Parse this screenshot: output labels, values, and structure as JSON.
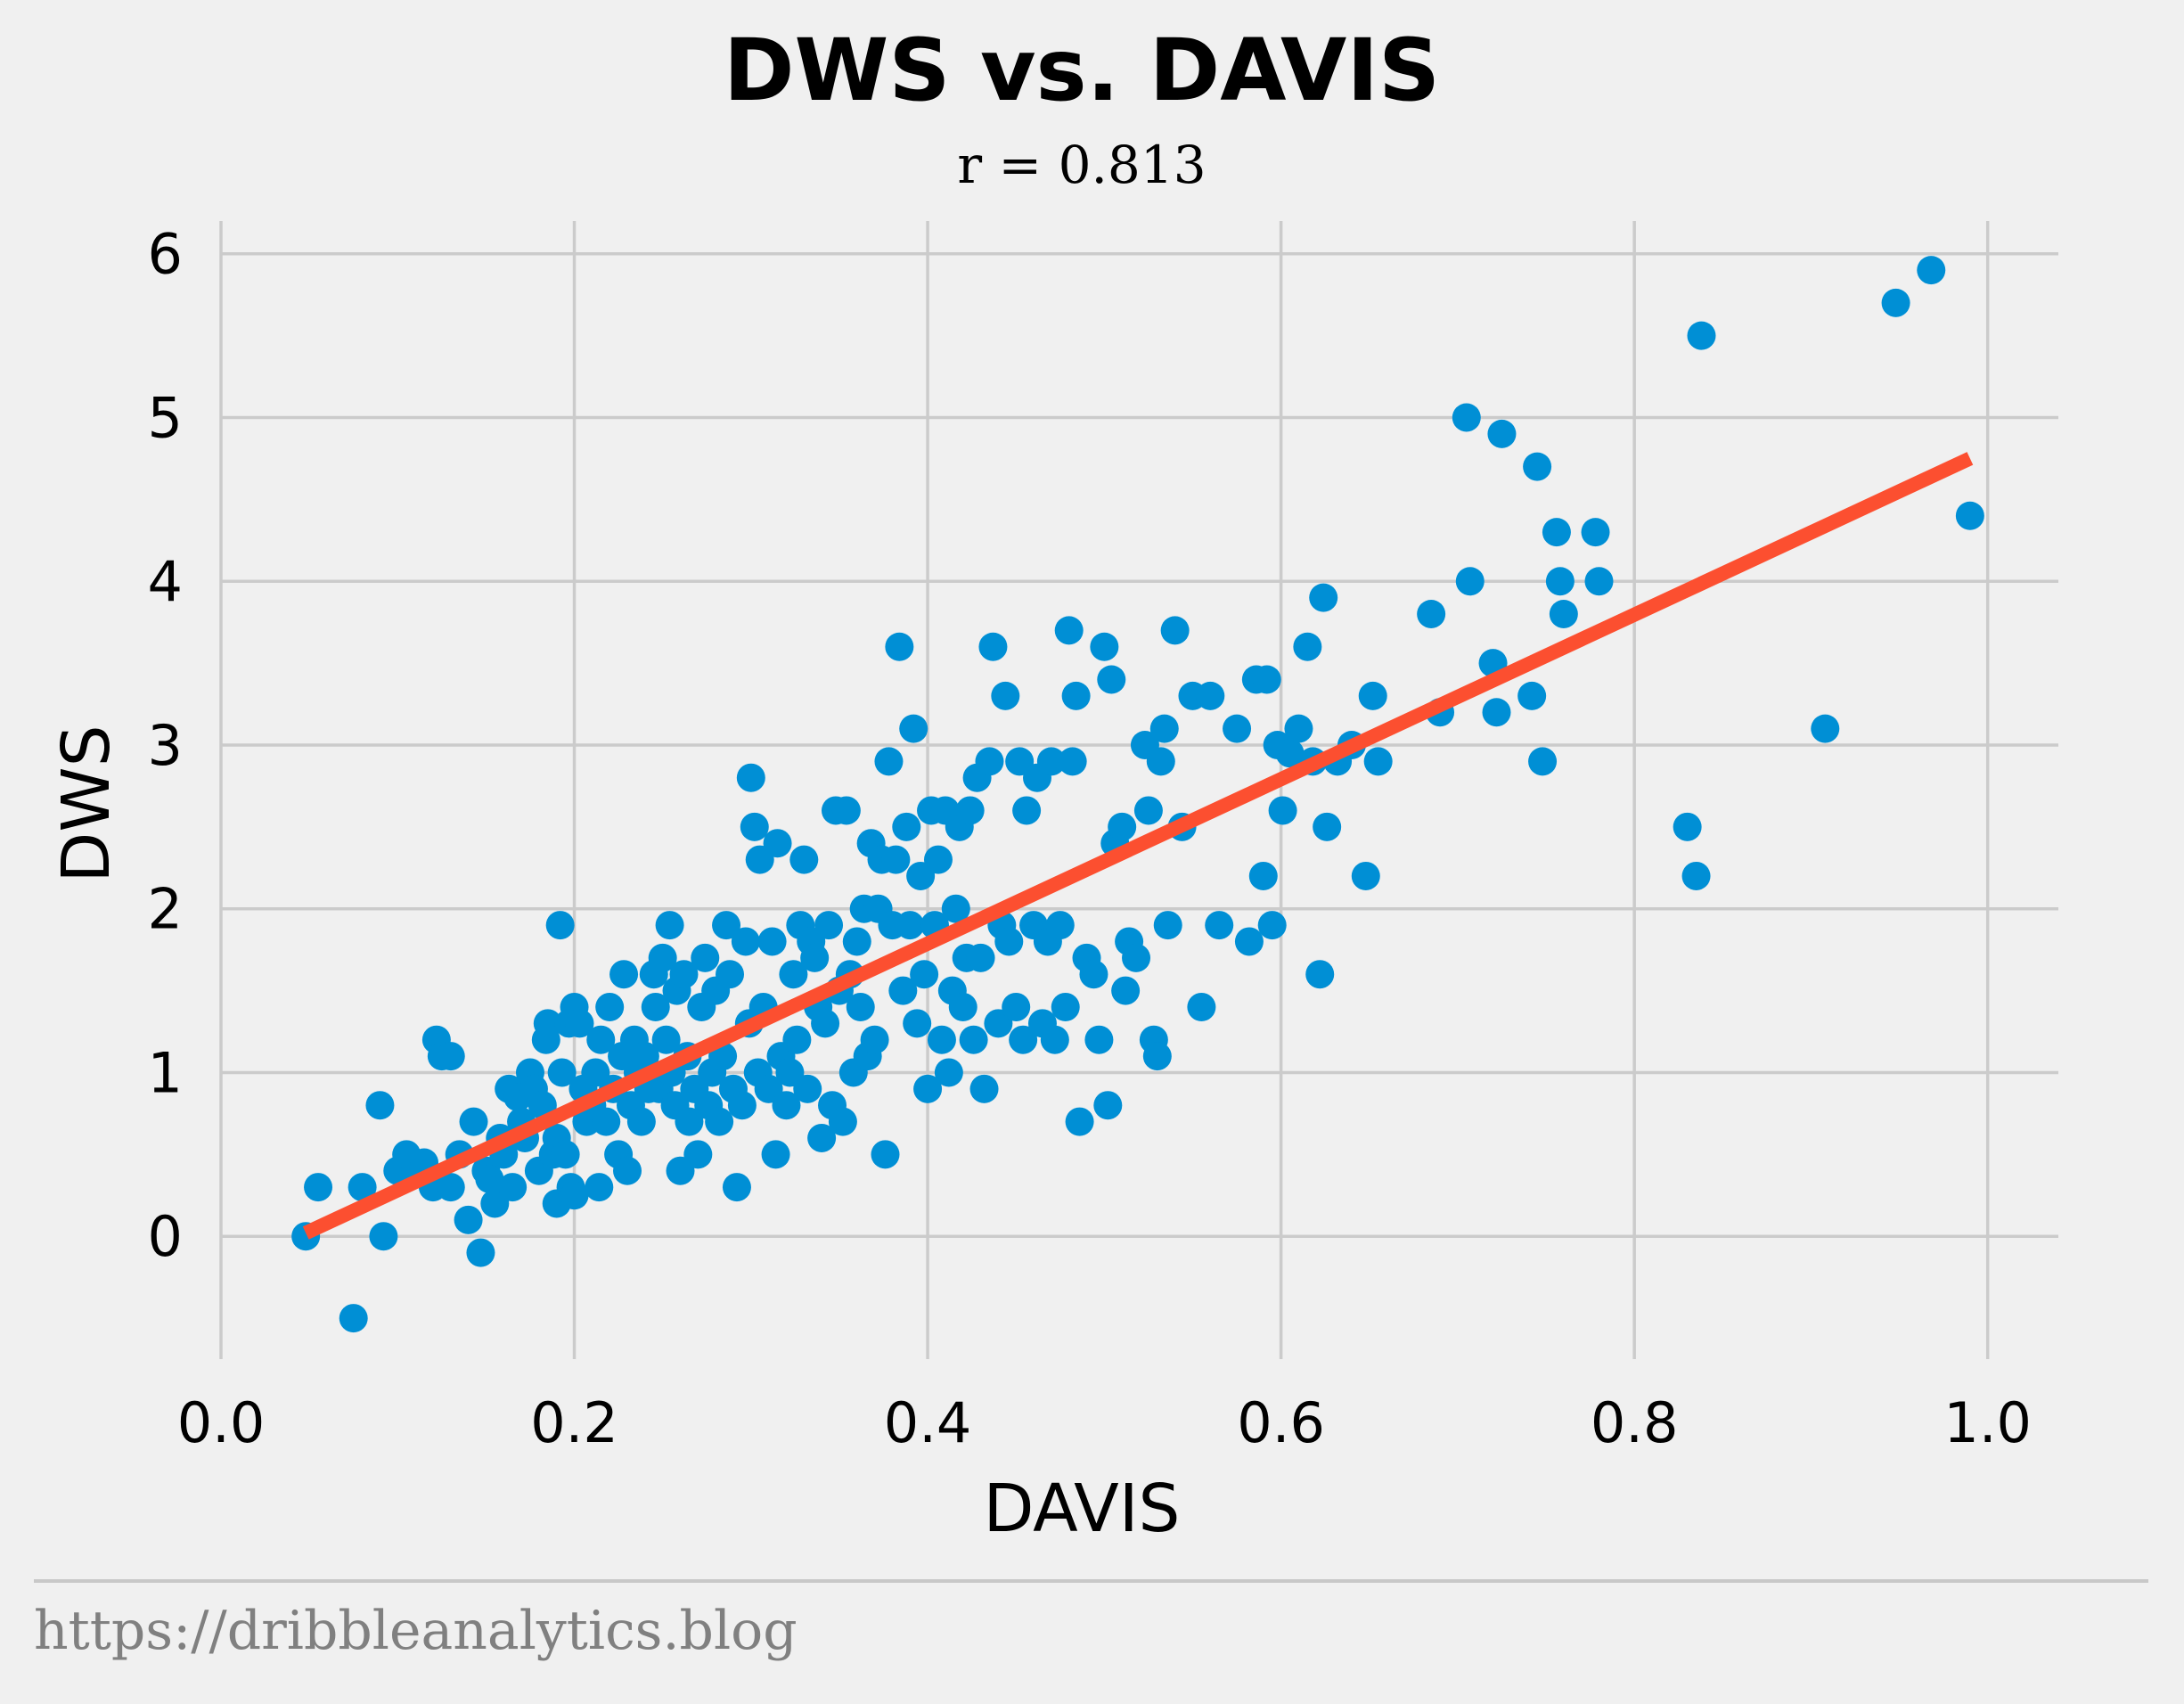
{
  "chart_data": {
    "type": "scatter",
    "title": "DWS vs. DAVIS",
    "subtitle": "r = 0.813",
    "xlabel": "DAVIS",
    "ylabel": "DWS",
    "xlim": [
      0.0,
      1.04
    ],
    "ylim": [
      -0.75,
      6.2
    ],
    "x_ticks": [
      0.0,
      0.2,
      0.4,
      0.6,
      0.8,
      1.0
    ],
    "x_tick_labels": [
      "0.0",
      "0.2",
      "0.4",
      "0.6",
      "0.8",
      "1.0"
    ],
    "y_ticks": [
      0,
      1,
      2,
      3,
      4,
      5,
      6
    ],
    "y_tick_labels": [
      "0",
      "1",
      "2",
      "3",
      "4",
      "5",
      "6"
    ],
    "grid": true,
    "point_color": "#008fd5",
    "fit_line_color": "#fc4f30",
    "fit_line": {
      "x": [
        0.048,
        0.99
      ],
      "y": [
        0.02,
        4.75
      ]
    },
    "source": "https://dribbleanalytics.blog",
    "points": [
      [
        0.048,
        0.0
      ],
      [
        0.055,
        0.3
      ],
      [
        0.075,
        -0.5
      ],
      [
        0.08,
        0.3
      ],
      [
        0.09,
        0.8
      ],
      [
        0.092,
        0.0
      ],
      [
        0.1,
        0.4
      ],
      [
        0.105,
        0.5
      ],
      [
        0.11,
        0.4
      ],
      [
        0.115,
        0.45
      ],
      [
        0.12,
        0.3
      ],
      [
        0.122,
        1.2
      ],
      [
        0.125,
        1.1
      ],
      [
        0.13,
        1.1
      ],
      [
        0.13,
        0.3
      ],
      [
        0.135,
        0.5
      ],
      [
        0.14,
        0.1
      ],
      [
        0.143,
        0.7
      ],
      [
        0.147,
        -0.1
      ],
      [
        0.15,
        0.4
      ],
      [
        0.152,
        0.35
      ],
      [
        0.155,
        0.2
      ],
      [
        0.158,
        0.6
      ],
      [
        0.16,
        0.5
      ],
      [
        0.163,
        0.9
      ],
      [
        0.165,
        0.3
      ],
      [
        0.168,
        0.85
      ],
      [
        0.17,
        0.7
      ],
      [
        0.172,
        0.6
      ],
      [
        0.175,
        1.0
      ],
      [
        0.177,
        0.9
      ],
      [
        0.18,
        0.4
      ],
      [
        0.182,
        0.8
      ],
      [
        0.184,
        1.2
      ],
      [
        0.185,
        1.3
      ],
      [
        0.188,
        0.5
      ],
      [
        0.19,
        0.6
      ],
      [
        0.19,
        0.2
      ],
      [
        0.192,
        1.9
      ],
      [
        0.193,
        1.0
      ],
      [
        0.195,
        0.5
      ],
      [
        0.197,
        1.3
      ],
      [
        0.198,
        0.3
      ],
      [
        0.2,
        1.4
      ],
      [
        0.2,
        0.25
      ],
      [
        0.203,
        1.3
      ],
      [
        0.205,
        0.9
      ],
      [
        0.207,
        0.7
      ],
      [
        0.21,
        0.8
      ],
      [
        0.212,
        1.0
      ],
      [
        0.214,
        0.3
      ],
      [
        0.215,
        1.2
      ],
      [
        0.218,
        0.7
      ],
      [
        0.22,
        1.4
      ],
      [
        0.222,
        0.9
      ],
      [
        0.225,
        0.5
      ],
      [
        0.227,
        1.1
      ],
      [
        0.228,
        1.6
      ],
      [
        0.23,
        0.4
      ],
      [
        0.232,
        0.8
      ],
      [
        0.234,
        1.2
      ],
      [
        0.236,
        1.0
      ],
      [
        0.238,
        0.7
      ],
      [
        0.24,
        1.1
      ],
      [
        0.242,
        0.9
      ],
      [
        0.245,
        1.6
      ],
      [
        0.246,
        1.4
      ],
      [
        0.248,
        0.9
      ],
      [
        0.25,
        1.7
      ],
      [
        0.252,
        1.2
      ],
      [
        0.254,
        1.9
      ],
      [
        0.255,
        1.0
      ],
      [
        0.257,
        0.8
      ],
      [
        0.258,
        1.5
      ],
      [
        0.26,
        0.4
      ],
      [
        0.262,
        1.6
      ],
      [
        0.264,
        1.1
      ],
      [
        0.265,
        0.7
      ],
      [
        0.268,
        0.9
      ],
      [
        0.27,
        0.5
      ],
      [
        0.272,
        1.4
      ],
      [
        0.274,
        1.7
      ],
      [
        0.276,
        0.8
      ],
      [
        0.278,
        1.0
      ],
      [
        0.28,
        1.5
      ],
      [
        0.282,
        0.7
      ],
      [
        0.284,
        1.1
      ],
      [
        0.286,
        1.9
      ],
      [
        0.288,
        1.6
      ],
      [
        0.29,
        0.9
      ],
      [
        0.292,
        0.3
      ],
      [
        0.295,
        0.8
      ],
      [
        0.297,
        1.8
      ],
      [
        0.299,
        1.3
      ],
      [
        0.3,
        2.8
      ],
      [
        0.302,
        2.5
      ],
      [
        0.304,
        1.0
      ],
      [
        0.305,
        2.3
      ],
      [
        0.307,
        1.4
      ],
      [
        0.31,
        0.9
      ],
      [
        0.312,
        1.8
      ],
      [
        0.314,
        0.5
      ],
      [
        0.315,
        2.4
      ],
      [
        0.317,
        1.1
      ],
      [
        0.32,
        0.8
      ],
      [
        0.322,
        1.0
      ],
      [
        0.324,
        1.6
      ],
      [
        0.326,
        1.2
      ],
      [
        0.328,
        1.9
      ],
      [
        0.33,
        2.3
      ],
      [
        0.332,
        0.9
      ],
      [
        0.334,
        1.8
      ],
      [
        0.336,
        1.7
      ],
      [
        0.338,
        1.4
      ],
      [
        0.34,
        0.6
      ],
      [
        0.342,
        1.3
      ],
      [
        0.344,
        1.9
      ],
      [
        0.346,
        0.8
      ],
      [
        0.348,
        2.6
      ],
      [
        0.35,
        1.5
      ],
      [
        0.352,
        0.7
      ],
      [
        0.354,
        2.6
      ],
      [
        0.356,
        1.6
      ],
      [
        0.358,
        1.0
      ],
      [
        0.36,
        1.8
      ],
      [
        0.362,
        1.4
      ],
      [
        0.364,
        2.0
      ],
      [
        0.366,
        1.1
      ],
      [
        0.368,
        2.4
      ],
      [
        0.37,
        1.2
      ],
      [
        0.372,
        2.0
      ],
      [
        0.374,
        2.3
      ],
      [
        0.376,
        0.5
      ],
      [
        0.378,
        2.9
      ],
      [
        0.38,
        1.9
      ],
      [
        0.382,
        2.3
      ],
      [
        0.384,
        3.6
      ],
      [
        0.386,
        1.5
      ],
      [
        0.388,
        2.5
      ],
      [
        0.39,
        1.9
      ],
      [
        0.392,
        3.1
      ],
      [
        0.394,
        1.3
      ],
      [
        0.396,
        2.2
      ],
      [
        0.398,
        1.6
      ],
      [
        0.4,
        0.9
      ],
      [
        0.402,
        2.6
      ],
      [
        0.404,
        1.9
      ],
      [
        0.406,
        2.3
      ],
      [
        0.408,
        1.2
      ],
      [
        0.41,
        2.6
      ],
      [
        0.412,
        1.0
      ],
      [
        0.414,
        1.5
      ],
      [
        0.416,
        2.0
      ],
      [
        0.418,
        2.5
      ],
      [
        0.42,
        1.4
      ],
      [
        0.422,
        1.7
      ],
      [
        0.424,
        2.6
      ],
      [
        0.426,
        1.2
      ],
      [
        0.428,
        2.8
      ],
      [
        0.43,
        1.7
      ],
      [
        0.432,
        0.9
      ],
      [
        0.435,
        2.9
      ],
      [
        0.437,
        3.6
      ],
      [
        0.44,
        1.3
      ],
      [
        0.442,
        1.9
      ],
      [
        0.444,
        3.3
      ],
      [
        0.446,
        1.8
      ],
      [
        0.45,
        1.4
      ],
      [
        0.452,
        2.9
      ],
      [
        0.454,
        1.2
      ],
      [
        0.456,
        2.6
      ],
      [
        0.46,
        1.9
      ],
      [
        0.462,
        2.8
      ],
      [
        0.465,
        1.3
      ],
      [
        0.468,
        1.8
      ],
      [
        0.47,
        2.9
      ],
      [
        0.472,
        1.2
      ],
      [
        0.475,
        1.9
      ],
      [
        0.478,
        1.4
      ],
      [
        0.48,
        3.7
      ],
      [
        0.482,
        2.9
      ],
      [
        0.484,
        3.3
      ],
      [
        0.486,
        0.7
      ],
      [
        0.49,
        1.7
      ],
      [
        0.494,
        1.6
      ],
      [
        0.497,
        1.2
      ],
      [
        0.5,
        3.6
      ],
      [
        0.502,
        0.8
      ],
      [
        0.504,
        3.4
      ],
      [
        0.506,
        2.4
      ],
      [
        0.51,
        2.5
      ],
      [
        0.512,
        1.5
      ],
      [
        0.514,
        1.8
      ],
      [
        0.518,
        1.7
      ],
      [
        0.523,
        3.0
      ],
      [
        0.525,
        2.6
      ],
      [
        0.528,
        1.2
      ],
      [
        0.53,
        1.1
      ],
      [
        0.532,
        2.9
      ],
      [
        0.534,
        3.1
      ],
      [
        0.536,
        1.9
      ],
      [
        0.54,
        3.7
      ],
      [
        0.544,
        2.5
      ],
      [
        0.55,
        3.3
      ],
      [
        0.555,
        1.4
      ],
      [
        0.56,
        3.3
      ],
      [
        0.565,
        1.9
      ],
      [
        0.575,
        3.1
      ],
      [
        0.582,
        1.8
      ],
      [
        0.586,
        3.4
      ],
      [
        0.59,
        2.2
      ],
      [
        0.592,
        3.4
      ],
      [
        0.595,
        1.9
      ],
      [
        0.598,
        3.0
      ],
      [
        0.601,
        2.6
      ],
      [
        0.605,
        2.95
      ],
      [
        0.61,
        3.1
      ],
      [
        0.615,
        3.6
      ],
      [
        0.618,
        2.9
      ],
      [
        0.622,
        1.6
      ],
      [
        0.624,
        3.9
      ],
      [
        0.626,
        2.5
      ],
      [
        0.632,
        2.9
      ],
      [
        0.64,
        3.0
      ],
      [
        0.648,
        2.2
      ],
      [
        0.652,
        3.3
      ],
      [
        0.655,
        2.9
      ],
      [
        0.685,
        3.8
      ],
      [
        0.69,
        3.2
      ],
      [
        0.705,
        5.0
      ],
      [
        0.707,
        4.0
      ],
      [
        0.72,
        3.5
      ],
      [
        0.722,
        3.2
      ],
      [
        0.725,
        4.9
      ],
      [
        0.742,
        3.3
      ],
      [
        0.745,
        4.7
      ],
      [
        0.748,
        2.9
      ],
      [
        0.756,
        4.3
      ],
      [
        0.758,
        4.0
      ],
      [
        0.76,
        3.8
      ],
      [
        0.778,
        4.3
      ],
      [
        0.78,
        4.0
      ],
      [
        0.83,
        2.5
      ],
      [
        0.835,
        2.2
      ],
      [
        0.838,
        5.5
      ],
      [
        0.908,
        3.1
      ],
      [
        0.948,
        5.7
      ],
      [
        0.968,
        5.9
      ],
      [
        0.99,
        4.4
      ]
    ]
  }
}
